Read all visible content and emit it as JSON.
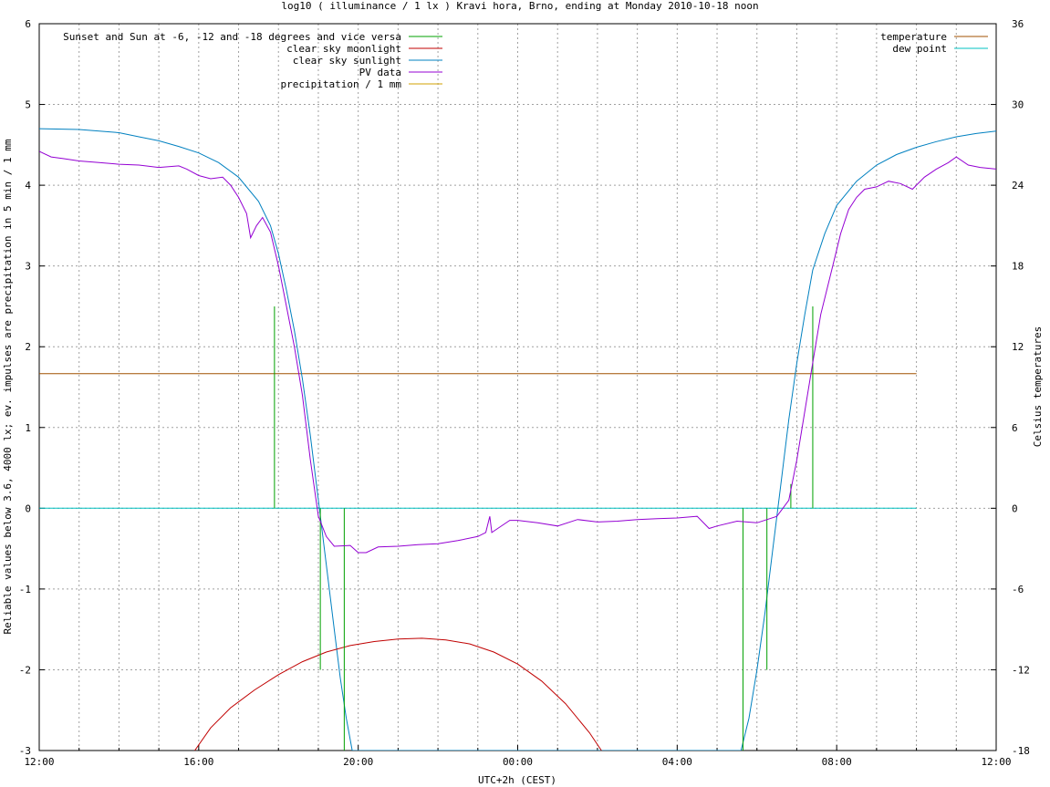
{
  "chart_data": {
    "type": "line",
    "title": "log10 ( illuminance / 1 lx ) Kravi hora, Brno, ending at Monday 2010-10-18 noon",
    "xlabel": "UTC+2h (CEST)",
    "ylabel": "Reliable values below 3.6, 4000 lx; ev. impulses are precipitation in 5 min / 1 mm",
    "y2label": "Celsius temperatures",
    "x_unit": "hours since 12:00 (UTC+2h)",
    "xlim": [
      0,
      24
    ],
    "ylim": [
      -3,
      6
    ],
    "y2lim": [
      -18,
      36
    ],
    "xticks": [
      {
        "x": 0,
        "label": "12:00"
      },
      {
        "x": 4,
        "label": "16:00"
      },
      {
        "x": 8,
        "label": "20:00"
      },
      {
        "x": 12,
        "label": "00:00"
      },
      {
        "x": 16,
        "label": "04:00"
      },
      {
        "x": 20,
        "label": "08:00"
      },
      {
        "x": 24,
        "label": "12:00"
      }
    ],
    "yticks": [
      -3,
      -2,
      -1,
      0,
      1,
      2,
      3,
      4,
      5,
      6
    ],
    "y2ticks": [
      -18,
      -12,
      -6,
      0,
      6,
      12,
      18,
      24,
      30,
      36
    ],
    "grid": true,
    "legend_left_position": "top-left",
    "legend_right_position": "top-right",
    "series": [
      {
        "name": "Sunset and Sun at -6, -12 and -18 degrees and vice versa",
        "color": "#00a000",
        "style": "impulses",
        "impulses": [
          {
            "x": 5.9,
            "y": 2.5
          },
          {
            "x": 7.05,
            "y": -2.0
          },
          {
            "x": 7.65,
            "y": -3.0
          },
          {
            "x": 17.65,
            "y": -3.0
          },
          {
            "x": 18.25,
            "y": -2.0
          },
          {
            "x": 18.85,
            "y": 0.3
          },
          {
            "x": 19.4,
            "y": 2.5
          }
        ]
      },
      {
        "name": "clear sky moonlight",
        "color": "#c00000",
        "points": [
          [
            3.9,
            -3.0
          ],
          [
            4.3,
            -2.72
          ],
          [
            4.8,
            -2.47
          ],
          [
            5.4,
            -2.25
          ],
          [
            6.0,
            -2.06
          ],
          [
            6.6,
            -1.9
          ],
          [
            7.2,
            -1.78
          ],
          [
            7.8,
            -1.7
          ],
          [
            8.4,
            -1.65
          ],
          [
            9.0,
            -1.62
          ],
          [
            9.6,
            -1.61
          ],
          [
            10.2,
            -1.63
          ],
          [
            10.8,
            -1.68
          ],
          [
            11.4,
            -1.78
          ],
          [
            12.0,
            -1.93
          ],
          [
            12.6,
            -2.14
          ],
          [
            13.2,
            -2.42
          ],
          [
            13.8,
            -2.78
          ],
          [
            14.1,
            -3.0
          ]
        ]
      },
      {
        "name": "clear sky sunlight",
        "color": "#0080c0",
        "points": [
          [
            0,
            4.7
          ],
          [
            1,
            4.69
          ],
          [
            2,
            4.65
          ],
          [
            2.5,
            4.6
          ],
          [
            3,
            4.55
          ],
          [
            3.5,
            4.48
          ],
          [
            4,
            4.4
          ],
          [
            4.5,
            4.28
          ],
          [
            5,
            4.1
          ],
          [
            5.5,
            3.8
          ],
          [
            5.8,
            3.5
          ],
          [
            6.0,
            3.15
          ],
          [
            6.2,
            2.7
          ],
          [
            6.4,
            2.2
          ],
          [
            6.6,
            1.6
          ],
          [
            6.8,
            0.9
          ],
          [
            7.0,
            0.1
          ],
          [
            7.2,
            -0.7
          ],
          [
            7.4,
            -1.5
          ],
          [
            7.55,
            -2.1
          ],
          [
            7.7,
            -2.6
          ],
          [
            7.85,
            -3.0
          ],
          [
            17.6,
            -3.0
          ],
          [
            17.8,
            -2.6
          ],
          [
            18.0,
            -2.0
          ],
          [
            18.2,
            -1.3
          ],
          [
            18.4,
            -0.5
          ],
          [
            18.6,
            0.3
          ],
          [
            18.8,
            1.1
          ],
          [
            19.0,
            1.8
          ],
          [
            19.2,
            2.4
          ],
          [
            19.4,
            2.95
          ],
          [
            19.7,
            3.4
          ],
          [
            20.0,
            3.75
          ],
          [
            20.5,
            4.05
          ],
          [
            21.0,
            4.25
          ],
          [
            21.5,
            4.38
          ],
          [
            22.0,
            4.47
          ],
          [
            22.5,
            4.54
          ],
          [
            23.0,
            4.6
          ],
          [
            23.5,
            4.64
          ],
          [
            24,
            4.67
          ]
        ]
      },
      {
        "name": "PV data",
        "color": "#9400d3",
        "points": [
          [
            0,
            4.42
          ],
          [
            0.3,
            4.35
          ],
          [
            0.6,
            4.33
          ],
          [
            1.0,
            4.3
          ],
          [
            1.5,
            4.28
          ],
          [
            2.0,
            4.26
          ],
          [
            2.5,
            4.25
          ],
          [
            3.0,
            4.22
          ],
          [
            3.5,
            4.24
          ],
          [
            3.7,
            4.2
          ],
          [
            4.0,
            4.12
          ],
          [
            4.3,
            4.08
          ],
          [
            4.6,
            4.1
          ],
          [
            4.8,
            4.0
          ],
          [
            5.0,
            3.85
          ],
          [
            5.2,
            3.65
          ],
          [
            5.3,
            3.35
          ],
          [
            5.45,
            3.5
          ],
          [
            5.6,
            3.6
          ],
          [
            5.8,
            3.42
          ],
          [
            6.0,
            3.0
          ],
          [
            6.2,
            2.5
          ],
          [
            6.4,
            2.0
          ],
          [
            6.6,
            1.4
          ],
          [
            6.8,
            0.6
          ],
          [
            7.0,
            -0.1
          ],
          [
            7.2,
            -0.35
          ],
          [
            7.4,
            -0.47
          ],
          [
            7.8,
            -0.46
          ],
          [
            8.0,
            -0.55
          ],
          [
            8.2,
            -0.55
          ],
          [
            8.5,
            -0.48
          ],
          [
            9.0,
            -0.47
          ],
          [
            9.5,
            -0.45
          ],
          [
            10.0,
            -0.44
          ],
          [
            10.5,
            -0.4
          ],
          [
            11.0,
            -0.35
          ],
          [
            11.2,
            -0.3
          ],
          [
            11.3,
            -0.1
          ],
          [
            11.35,
            -0.3
          ],
          [
            11.5,
            -0.25
          ],
          [
            11.8,
            -0.15
          ],
          [
            12.0,
            -0.15
          ],
          [
            12.5,
            -0.18
          ],
          [
            13.0,
            -0.22
          ],
          [
            13.5,
            -0.14
          ],
          [
            14.0,
            -0.17
          ],
          [
            14.5,
            -0.16
          ],
          [
            15.0,
            -0.14
          ],
          [
            15.5,
            -0.13
          ],
          [
            16.0,
            -0.12
          ],
          [
            16.5,
            -0.1
          ],
          [
            16.8,
            -0.25
          ],
          [
            17.0,
            -0.22
          ],
          [
            17.5,
            -0.16
          ],
          [
            18.0,
            -0.18
          ],
          [
            18.5,
            -0.1
          ],
          [
            18.8,
            0.1
          ],
          [
            19.0,
            0.6
          ],
          [
            19.2,
            1.2
          ],
          [
            19.4,
            1.8
          ],
          [
            19.6,
            2.4
          ],
          [
            19.9,
            3.0
          ],
          [
            20.1,
            3.4
          ],
          [
            20.3,
            3.7
          ],
          [
            20.5,
            3.85
          ],
          [
            20.7,
            3.95
          ],
          [
            21.0,
            3.98
          ],
          [
            21.3,
            4.05
          ],
          [
            21.6,
            4.02
          ],
          [
            21.9,
            3.95
          ],
          [
            22.2,
            4.1
          ],
          [
            22.5,
            4.2
          ],
          [
            22.8,
            4.28
          ],
          [
            23.0,
            4.35
          ],
          [
            23.3,
            4.25
          ],
          [
            23.6,
            4.22
          ],
          [
            24,
            4.2
          ]
        ]
      },
      {
        "name": "precipitation / 1 mm",
        "color": "#d0a000",
        "points": []
      },
      {
        "name": "temperature",
        "color": "#a05000",
        "axis": "y2",
        "points": [
          [
            0,
            10.0
          ],
          [
            22.0,
            10.0
          ]
        ]
      },
      {
        "name": "dew point",
        "color": "#00c0c0",
        "axis": "y2",
        "points": [
          [
            0,
            0.0
          ],
          [
            22.0,
            0.0
          ]
        ]
      }
    ]
  }
}
